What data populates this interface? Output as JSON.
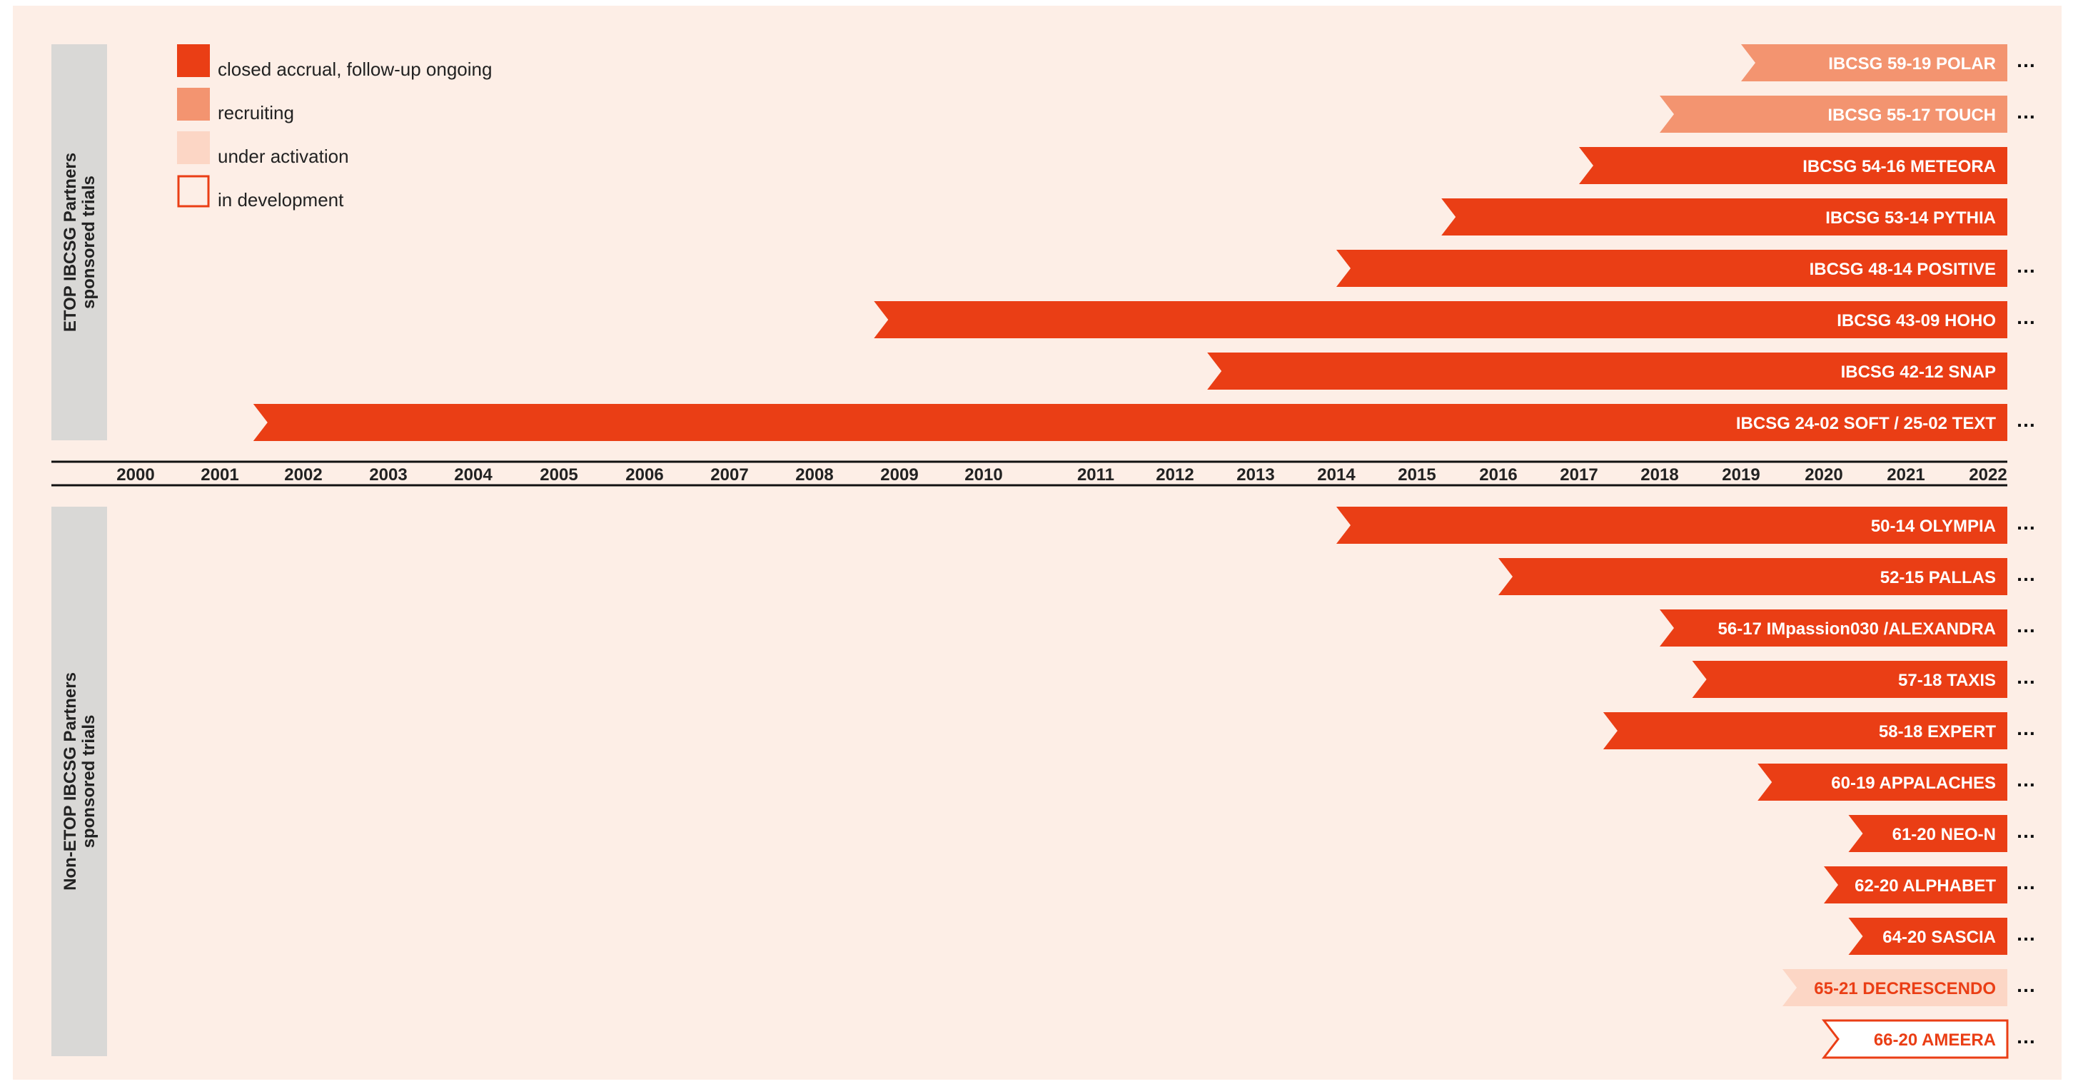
{
  "colors": {
    "background": "#FDEEE6",
    "closed": "#EA3E15",
    "recruiting": "#F39470",
    "under_activation": "#FCD6C5",
    "in_development_border": "#EA3E15",
    "side_panel": "#D9D8D6",
    "text_dark": "#222222",
    "bar_text_light": "#ffffff"
  },
  "legend": {
    "closed": "closed accrual, follow-up ongoing",
    "recruiting": "recruiting",
    "under_activation": "under activation",
    "in_development": "in development"
  },
  "groups": {
    "top": "ETOP IBCSG Partners sponsored trials",
    "bottom": "Non-ETOP IBCSG Partners sponsored trials"
  },
  "more_marker": "…",
  "chart_data": {
    "type": "gantt",
    "x_axis": {
      "ticks": [
        "2000",
        "2001",
        "2002",
        "2003",
        "2004",
        "2005",
        "2006",
        "2007",
        "2008",
        "2009",
        "2010",
        "2011",
        "2012",
        "2013",
        "2014",
        "2015",
        "2016",
        "2017",
        "2018",
        "2019",
        "2020",
        "2021",
        "2022"
      ],
      "range": [
        2000,
        2022
      ]
    },
    "trials": [
      {
        "group": "top",
        "label": "IBCSG 59-19 POLAR",
        "start": 2019.0,
        "status": "recruiting",
        "continues": true
      },
      {
        "group": "top",
        "label": "IBCSG 55-17 TOUCH",
        "start": 2018.0,
        "status": "recruiting",
        "continues": true
      },
      {
        "group": "top",
        "label": "IBCSG 54-16 METEORA",
        "start": 2017.0,
        "status": "closed",
        "continues": false
      },
      {
        "group": "top",
        "label": "IBCSG 53-14 PYTHIA",
        "start": 2015.3,
        "status": "closed",
        "continues": false
      },
      {
        "group": "top",
        "label": "IBCSG 48-14 POSITIVE",
        "start": 2014.0,
        "status": "closed",
        "continues": true
      },
      {
        "group": "top",
        "label": "IBCSG 43-09 HOHO",
        "start": 2008.7,
        "status": "closed",
        "continues": true
      },
      {
        "group": "top",
        "label": "IBCSG 42-12 SNAP",
        "start": 2012.4,
        "status": "closed",
        "continues": false
      },
      {
        "group": "top",
        "label": "IBCSG 24-02 SOFT / 25-02 TEXT",
        "start": 2001.4,
        "status": "closed",
        "continues": true
      },
      {
        "group": "bottom",
        "label": "50-14 OLYMPIA",
        "start": 2014.0,
        "status": "closed",
        "continues": true
      },
      {
        "group": "bottom",
        "label": "52-15 PALLAS",
        "start": 2016.0,
        "status": "closed",
        "continues": true
      },
      {
        "group": "bottom",
        "label": "56-17 IMpassion030 /ALEXANDRA",
        "start": 2018.0,
        "status": "closed",
        "continues": true
      },
      {
        "group": "bottom",
        "label": "57-18 TAXIS",
        "start": 2018.4,
        "status": "closed",
        "continues": true
      },
      {
        "group": "bottom",
        "label": "58-18 EXPERT",
        "start": 2017.3,
        "status": "closed",
        "continues": true
      },
      {
        "group": "bottom",
        "label": "60-19 APPALACHES",
        "start": 2019.2,
        "status": "closed",
        "continues": true
      },
      {
        "group": "bottom",
        "label": "61-20 NEO-N",
        "start": 2020.3,
        "status": "closed",
        "continues": true
      },
      {
        "group": "bottom",
        "label": "62-20 ALPHABET",
        "start": 2020.0,
        "status": "closed",
        "continues": true
      },
      {
        "group": "bottom",
        "label": "64-20 SASCIA",
        "start": 2020.3,
        "status": "closed",
        "continues": true
      },
      {
        "group": "bottom",
        "label": "65-21 DECRESCENDO",
        "start": 2019.5,
        "status": "under_activation",
        "continues": true
      },
      {
        "group": "bottom",
        "label": "66-20 AMEERA",
        "start": 2020.0,
        "status": "in_development",
        "continues": true
      }
    ]
  }
}
